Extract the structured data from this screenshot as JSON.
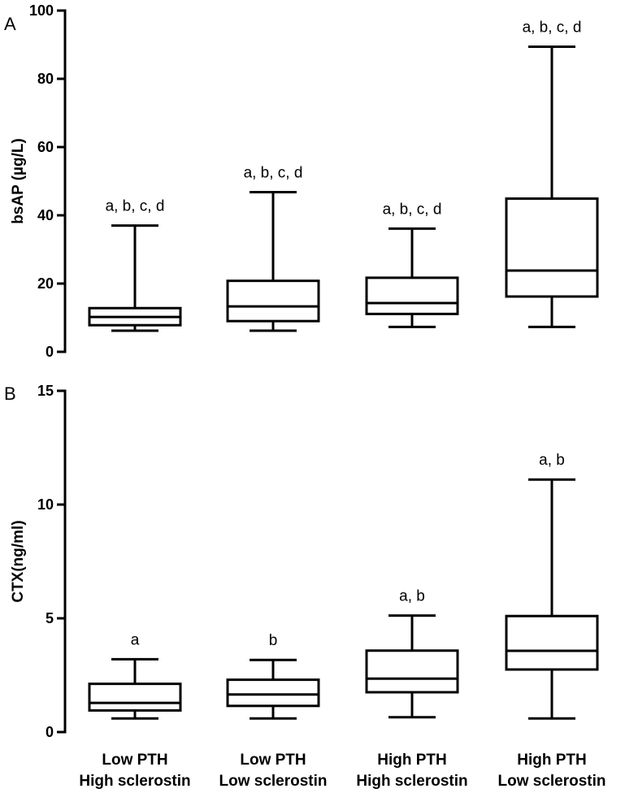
{
  "chart_data": [
    {
      "type": "box",
      "panel_label": "A",
      "ylabel": "bsAP (µg/L)",
      "ylim": [
        0,
        100
      ],
      "yticks": [
        0,
        20,
        40,
        60,
        80,
        100
      ],
      "categories": [
        [
          "Low PTH",
          "High sclerostin"
        ],
        [
          "Low PTH",
          "Low sclerostin"
        ],
        [
          "High PTH",
          "High sclerostin"
        ],
        [
          "High PTH",
          "Low sclerostin"
        ]
      ],
      "boxes": [
        {
          "min": 6.2,
          "q1": 7.8,
          "median": 10.2,
          "q3": 12.8,
          "max": 37.0,
          "annotation": "a, b, c, d"
        },
        {
          "min": 6.2,
          "q1": 9.0,
          "median": 13.3,
          "q3": 20.8,
          "max": 46.8,
          "annotation": "a, b, c, d"
        },
        {
          "min": 7.3,
          "q1": 11.1,
          "median": 14.3,
          "q3": 21.7,
          "max": 36.1,
          "annotation": "a, b, c, d"
        },
        {
          "min": 7.3,
          "q1": 16.2,
          "median": 23.8,
          "q3": 44.9,
          "max": 89.4,
          "annotation": "a, b, c, d"
        }
      ]
    },
    {
      "type": "box",
      "panel_label": "B",
      "ylabel": "CTX(ng/ml)",
      "ylim": [
        0,
        15
      ],
      "yticks": [
        0,
        5,
        10,
        15
      ],
      "categories": [
        [
          "Low PTH",
          "High sclerostin"
        ],
        [
          "Low PTH",
          "Low sclerostin"
        ],
        [
          "High PTH",
          "High sclerostin"
        ],
        [
          "High PTH",
          "Low sclerostin"
        ]
      ],
      "boxes": [
        {
          "min": 0.6,
          "q1": 0.95,
          "median": 1.28,
          "q3": 2.12,
          "max": 3.2,
          "annotation": "a"
        },
        {
          "min": 0.6,
          "q1": 1.15,
          "median": 1.65,
          "q3": 2.3,
          "max": 3.17,
          "annotation": "b"
        },
        {
          "min": 0.65,
          "q1": 1.75,
          "median": 2.35,
          "q3": 3.58,
          "max": 5.12,
          "annotation": "a, b"
        },
        {
          "min": 0.6,
          "q1": 2.75,
          "median": 3.57,
          "q3": 5.1,
          "max": 11.1,
          "annotation": "a, b"
        }
      ]
    }
  ]
}
